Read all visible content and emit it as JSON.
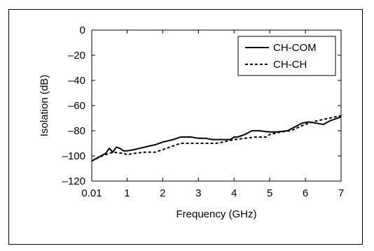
{
  "chart_data": {
    "type": "line",
    "xlabel": "Frequency (GHz)",
    "ylabel": "Isolation (dB)",
    "xlim": [
      0.01,
      7
    ],
    "ylim": [
      -120,
      0
    ],
    "x_ticks": [
      0.01,
      1,
      2,
      3,
      4,
      5,
      6,
      7
    ],
    "x_tick_labels": [
      "0.01",
      "1",
      "2",
      "3",
      "4",
      "5",
      "6",
      "7"
    ],
    "y_ticks": [
      0,
      -20,
      -40,
      -60,
      -80,
      -100,
      -120
    ],
    "y_tick_labels": [
      "0",
      "–20",
      "–40",
      "–60",
      "–80",
      "–100",
      "–120"
    ],
    "grid": false,
    "legend_position": "top-right",
    "series": [
      {
        "name": "CH-COM",
        "style": "solid",
        "color": "#000000",
        "x": [
          0.01,
          0.2,
          0.4,
          0.5,
          0.6,
          0.7,
          0.8,
          0.9,
          1.0,
          1.2,
          1.5,
          1.8,
          2.0,
          2.3,
          2.5,
          2.8,
          3.0,
          3.2,
          3.4,
          3.7,
          3.9,
          4.0,
          4.1,
          4.3,
          4.5,
          4.7,
          5.0,
          5.2,
          5.5,
          5.7,
          5.9,
          6.1,
          6.3,
          6.5,
          6.7,
          7.0
        ],
        "y": [
          -104,
          -101,
          -98,
          -94,
          -97,
          -93,
          -94,
          -96,
          -96,
          -95,
          -93,
          -91,
          -89,
          -87,
          -85,
          -85,
          -86,
          -86,
          -87,
          -87,
          -87,
          -85,
          -85,
          -83,
          -80,
          -80,
          -81,
          -81,
          -80,
          -77,
          -74,
          -73,
          -74,
          -75,
          -72,
          -69
        ]
      },
      {
        "name": "CH-CH",
        "style": "dashed",
        "color": "#000000",
        "x": [
          0.01,
          0.3,
          0.6,
          0.9,
          1.0,
          1.2,
          1.5,
          1.8,
          2.0,
          2.3,
          2.5,
          2.8,
          3.0,
          3.3,
          3.5,
          3.7,
          4.0,
          4.3,
          4.6,
          4.9,
          5.0,
          5.3,
          5.6,
          5.9,
          6.2,
          6.5,
          7.0
        ],
        "y": [
          -104,
          -100,
          -97,
          -98,
          -99,
          -98,
          -97,
          -97,
          -95,
          -92,
          -90,
          -90,
          -90,
          -90,
          -90,
          -89,
          -87,
          -86,
          -85,
          -85,
          -83,
          -81,
          -80,
          -76,
          -73,
          -71,
          -68
        ]
      }
    ]
  }
}
